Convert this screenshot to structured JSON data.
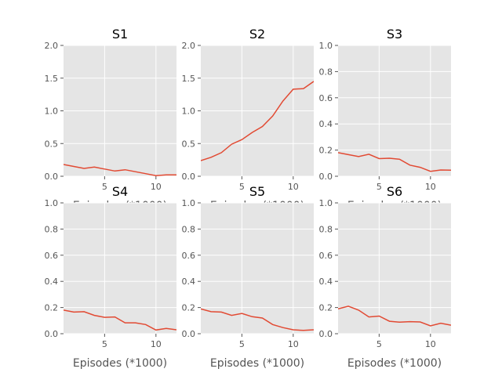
{
  "style": {
    "background": "#ffffff",
    "axes_facecolor": "#e5e5e5",
    "grid_color": "#ffffff",
    "line_color": "#e24a33",
    "tick_color": "#555555"
  },
  "chart_data": [
    {
      "type": "line",
      "title": "S1",
      "xlabel": "Episodes (*1000)",
      "ylabel": "",
      "grid": true,
      "xlim": [
        1,
        12
      ],
      "ylim": [
        0,
        2.0
      ],
      "xticks": [
        5,
        10
      ],
      "yticks": [
        0.0,
        0.5,
        1.0,
        1.5,
        2.0
      ],
      "ytick_labels": [
        "0.0",
        "0.5",
        "1.0",
        "1.5",
        "2.0"
      ],
      "series": [
        {
          "x": [
            1,
            2,
            3,
            4,
            5,
            6,
            7,
            8,
            9,
            10,
            11,
            12
          ],
          "values": [
            0.18,
            0.15,
            0.12,
            0.14,
            0.11,
            0.08,
            0.1,
            0.07,
            0.04,
            0.01,
            0.02,
            0.02
          ]
        }
      ]
    },
    {
      "type": "line",
      "title": "S2",
      "xlabel": "Episodes (*1000)",
      "ylabel": "",
      "grid": true,
      "xlim": [
        1,
        12
      ],
      "ylim": [
        0,
        2.0
      ],
      "xticks": [
        5,
        10
      ],
      "yticks": [
        0.0,
        0.5,
        1.0,
        1.5,
        2.0
      ],
      "ytick_labels": [
        "0.0",
        "0.5",
        "1.0",
        "1.5",
        "2.0"
      ],
      "series": [
        {
          "x": [
            1,
            2,
            3,
            4,
            5,
            6,
            7,
            8,
            9,
            10,
            11,
            12
          ],
          "values": [
            0.24,
            0.29,
            0.36,
            0.49,
            0.56,
            0.67,
            0.76,
            0.92,
            1.15,
            1.33,
            1.34,
            1.45
          ]
        }
      ]
    },
    {
      "type": "line",
      "title": "S3",
      "xlabel": "Episodes (*1000)",
      "ylabel": "",
      "grid": true,
      "xlim": [
        1,
        12
      ],
      "ylim": [
        0,
        1.0
      ],
      "xticks": [
        5,
        10
      ],
      "yticks": [
        0.0,
        0.2,
        0.4,
        0.6,
        0.8,
        1.0
      ],
      "ytick_labels": [
        "0.0",
        "0.2",
        "0.4",
        "0.6",
        "0.8",
        "1.0"
      ],
      "series": [
        {
          "x": [
            1,
            2,
            3,
            4,
            5,
            6,
            7,
            8,
            9,
            10,
            11,
            12
          ],
          "values": [
            0.18,
            0.165,
            0.15,
            0.168,
            0.135,
            0.138,
            0.13,
            0.085,
            0.068,
            0.038,
            0.048,
            0.047
          ]
        }
      ]
    },
    {
      "type": "line",
      "title": "S4",
      "xlabel": "Episodes (*1000)",
      "ylabel": "",
      "grid": true,
      "xlim": [
        1,
        12
      ],
      "ylim": [
        0,
        1.0
      ],
      "xticks": [
        5,
        10
      ],
      "yticks": [
        0.0,
        0.2,
        0.4,
        0.6,
        0.8,
        1.0
      ],
      "ytick_labels": [
        "0.0",
        "0.2",
        "0.4",
        "0.6",
        "0.8",
        "1.0"
      ],
      "series": [
        {
          "x": [
            1,
            2,
            3,
            4,
            5,
            6,
            7,
            8,
            9,
            10,
            11,
            12
          ],
          "values": [
            0.18,
            0.165,
            0.168,
            0.14,
            0.125,
            0.128,
            0.083,
            0.083,
            0.07,
            0.028,
            0.04,
            0.03
          ]
        }
      ]
    },
    {
      "type": "line",
      "title": "S5",
      "xlabel": "Episodes (*1000)",
      "ylabel": "",
      "grid": true,
      "xlim": [
        1,
        12
      ],
      "ylim": [
        0,
        1.0
      ],
      "xticks": [
        5,
        10
      ],
      "yticks": [
        0.0,
        0.2,
        0.4,
        0.6,
        0.8,
        1.0
      ],
      "ytick_labels": [
        "0.0",
        "0.2",
        "0.4",
        "0.6",
        "0.8",
        "1.0"
      ],
      "series": [
        {
          "x": [
            1,
            2,
            3,
            4,
            5,
            6,
            7,
            8,
            9,
            10,
            11,
            12
          ],
          "values": [
            0.19,
            0.168,
            0.165,
            0.14,
            0.155,
            0.13,
            0.12,
            0.07,
            0.047,
            0.03,
            0.025,
            0.03
          ]
        }
      ]
    },
    {
      "type": "line",
      "title": "S6",
      "xlabel": "Episodes (*1000)",
      "ylabel": "",
      "grid": true,
      "xlim": [
        1,
        12
      ],
      "ylim": [
        0,
        1.0
      ],
      "xticks": [
        5,
        10
      ],
      "yticks": [
        0.0,
        0.2,
        0.4,
        0.6,
        0.8,
        1.0
      ],
      "ytick_labels": [
        "0.0",
        "0.2",
        "0.4",
        "0.6",
        "0.8",
        "1.0"
      ],
      "series": [
        {
          "x": [
            1,
            2,
            3,
            4,
            5,
            6,
            7,
            8,
            9,
            10,
            11,
            12
          ],
          "values": [
            0.19,
            0.21,
            0.18,
            0.128,
            0.135,
            0.095,
            0.088,
            0.092,
            0.09,
            0.06,
            0.08,
            0.065
          ]
        }
      ]
    }
  ]
}
